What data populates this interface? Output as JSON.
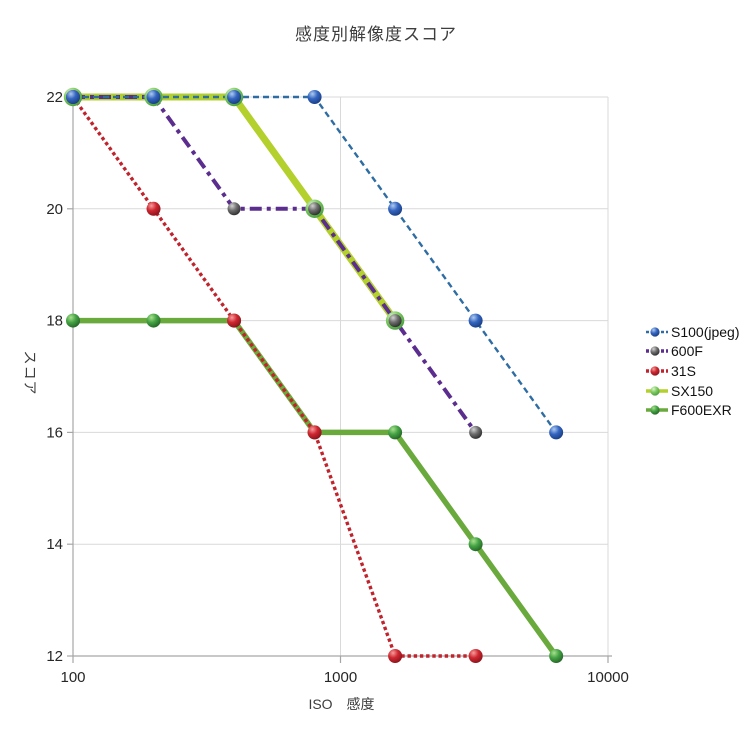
{
  "chart_data": {
    "type": "line",
    "title": "感度別解像度スコア",
    "xlabel": "ISO　感度",
    "ylabel": "スコア",
    "x_scale": "log",
    "xlim": [
      100,
      10000
    ],
    "ylim": [
      12,
      22
    ],
    "x_ticks": [
      "100",
      "1000",
      "10000"
    ],
    "x_tick_values": [
      100,
      1000,
      10000
    ],
    "y_ticks": [
      12,
      14,
      16,
      18,
      20,
      22
    ],
    "grid": "on",
    "legend_position": "right",
    "colors": {
      "gridline": "#d9d9d9",
      "axis": "#a6a6a6",
      "tick_label": "#262626",
      "background": "#ffffff"
    },
    "series": [
      {
        "name": "S100(jpeg)",
        "x": [
          100,
          200,
          400,
          800,
          1600,
          3200,
          6400
        ],
        "values": [
          22,
          22,
          22,
          22,
          20,
          18,
          16
        ],
        "line_color": "#2e6da4",
        "line_style": "dashed",
        "line_width": 2.4,
        "marker": {
          "light": "#aecbf0",
          "base": "#3465c0",
          "dark": "#16397c"
        },
        "marker_radius": 7
      },
      {
        "name": "600F",
        "x": [
          100,
          200,
          400,
          800,
          1600,
          3200
        ],
        "values": [
          22,
          22,
          20,
          20,
          18,
          16
        ],
        "line_color": "#5b2d8e",
        "line_style": "dashdot",
        "line_width": 4,
        "marker": {
          "light": "#d2d2d2",
          "base": "#6e6e6e",
          "dark": "#262626"
        },
        "marker_radius": 6.5
      },
      {
        "name": "31S",
        "x": [
          100,
          200,
          400,
          800,
          1600,
          3200
        ],
        "values": [
          22,
          20,
          18,
          16,
          12,
          12
        ],
        "line_color": "#c0232c",
        "line_style": "dotted",
        "line_width": 3.4,
        "marker": {
          "light": "#f59c9c",
          "base": "#cf2730",
          "dark": "#83111a"
        },
        "marker_radius": 7
      },
      {
        "name": "SX150",
        "x": [
          100,
          200,
          400,
          800,
          1600
        ],
        "values": [
          22,
          22,
          22,
          20,
          18
        ],
        "line_color": "#b3d02c",
        "line_style": "solid",
        "line_width": 7,
        "marker": {
          "light": "#dcf5cd",
          "base": "#7ecb60",
          "dark": "#449a3e"
        },
        "marker_radius": 9.2
      },
      {
        "name": "F600EXR",
        "x": [
          100,
          200,
          400,
          800,
          1600,
          3200,
          6400
        ],
        "values": [
          18,
          18,
          18,
          16,
          16,
          14,
          12
        ],
        "line_color": "#6aaa3c",
        "line_style": "solid",
        "line_width": 5.5,
        "marker": {
          "light": "#a9e08d",
          "base": "#45a445",
          "dark": "#225e24"
        },
        "marker_radius": 7
      }
    ]
  }
}
